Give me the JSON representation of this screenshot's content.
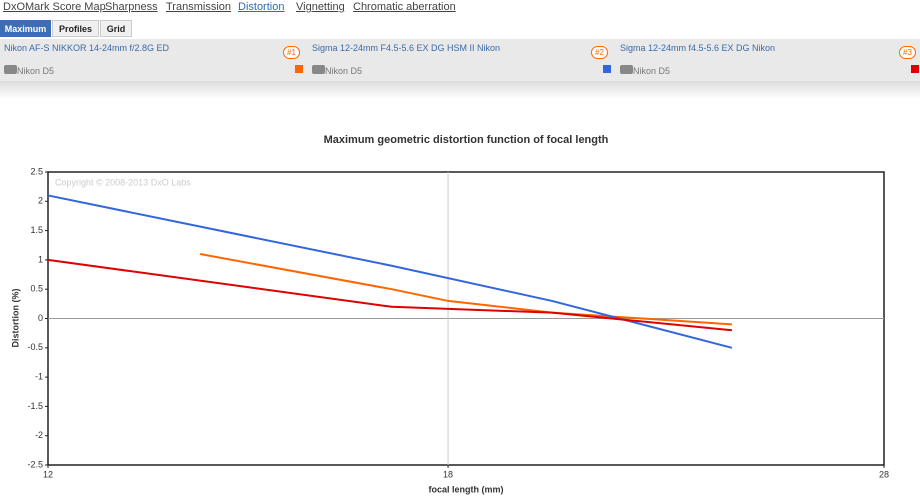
{
  "nav": {
    "links": [
      "DxOMark Score Map",
      "Sharpness",
      "Transmission",
      "Distortion",
      "Vignetting",
      "Chromatic aberration"
    ],
    "active": 3
  },
  "tabs": {
    "items": [
      "Maximum",
      "Profiles",
      "Grid"
    ],
    "active": 0
  },
  "lenses": [
    {
      "badge": "#1",
      "camera": "Nikon D5"
    },
    {
      "badge": "#2",
      "camera": "Nikon D5"
    },
    {
      "badge": "#3",
      "camera": "Nikon D5"
    }
  ],
  "chart_data": {
    "type": "line",
    "title": "Maximum geometric distortion function of focal length",
    "x_label": "focal length (mm)",
    "y_label": "Distortion (%)",
    "watermark": "Copyright © 2008-2013 DxO Labs",
    "xscale": "log",
    "xlim": [
      12,
      28
    ],
    "xticks": [
      12,
      18,
      28
    ],
    "ylim": [
      -2.5,
      2.5
    ],
    "yticks": [
      2.5,
      2,
      1.5,
      1,
      0.5,
      0,
      -0.5,
      -1,
      -1.5,
      -2,
      -2.5
    ],
    "grid_x": true,
    "zero_line": true,
    "series": [
      {
        "name": "Nikon AF-S NIKKOR 14-24mm f/2.8G ED",
        "color": "#ff6600",
        "x": [
          14,
          17,
          18,
          20,
          24
        ],
        "values": [
          1.1,
          0.5,
          0.3,
          0.1,
          -0.1
        ]
      },
      {
        "name": "Sigma 12-24mm F4.5-5.6 EX DG HSM II Nikon",
        "color": "#3366dd",
        "x": [
          12,
          17,
          20,
          24
        ],
        "values": [
          2.1,
          0.9,
          0.3,
          -0.5
        ]
      },
      {
        "name": "Sigma 12-24mm f4.5-5.6 EX DG Nikon",
        "color": "#dd0000",
        "x": [
          12,
          17,
          20,
          24
        ],
        "values": [
          1.0,
          0.2,
          0.1,
          -0.2
        ]
      }
    ]
  }
}
